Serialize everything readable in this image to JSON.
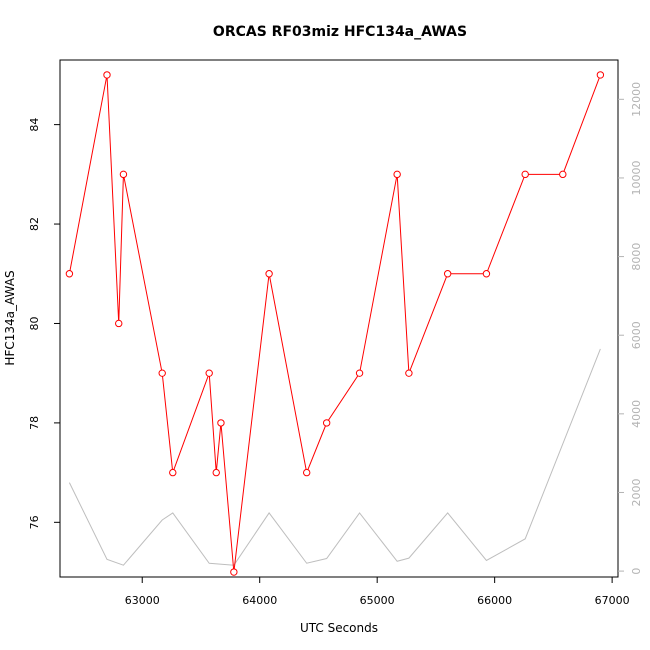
{
  "chart_data": {
    "type": "line",
    "title": "ORCAS RF03miz HFC134a_AWAS",
    "xlabel": "UTC Seconds",
    "ylabel": "HFC134a_AWAS",
    "xlim": [
      62300,
      67050
    ],
    "ylim": [
      74.9,
      85.3
    ],
    "y2lim": [
      -150,
      13000
    ],
    "x_ticks": [
      63000,
      64000,
      65000,
      66000,
      67000
    ],
    "y_ticks": [
      76,
      78,
      80,
      82,
      84
    ],
    "y2_ticks": [
      0,
      2000,
      4000,
      6000,
      8000,
      10000,
      12000
    ],
    "grid": false,
    "series": [
      {
        "role": "primary",
        "color": "#ff0000",
        "marker": "open-circle",
        "x": [
          62380,
          62700,
          62800,
          62840,
          63170,
          63260,
          63570,
          63630,
          63670,
          63780,
          64080,
          64400,
          64570,
          64850,
          65170,
          65270,
          65600,
          65930,
          66260,
          66580,
          66900
        ],
        "y": [
          81,
          85,
          80,
          83,
          79,
          77,
          79,
          77,
          78,
          75,
          81,
          77,
          78,
          79,
          83,
          79,
          81,
          81,
          83,
          83,
          85
        ]
      },
      {
        "role": "secondary-axis",
        "color": "#bebebe",
        "x": [
          62380,
          62700,
          62840,
          63170,
          63260,
          63570,
          63780,
          64080,
          64400,
          64570,
          64850,
          65170,
          65270,
          65600,
          65930,
          66260,
          66900
        ],
        "y": [
          2250,
          300,
          150,
          1300,
          1480,
          200,
          150,
          1480,
          200,
          320,
          1480,
          250,
          330,
          1480,
          270,
          820,
          5650
        ]
      }
    ]
  }
}
